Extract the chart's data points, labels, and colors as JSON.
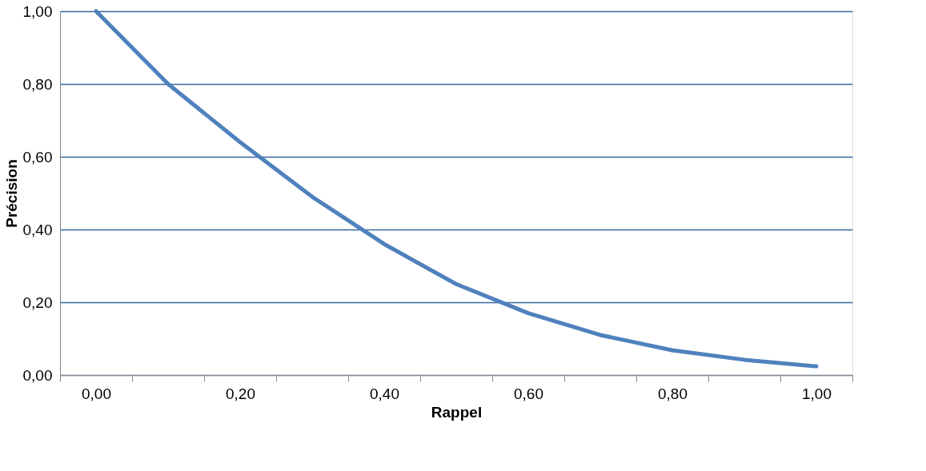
{
  "chart_data": {
    "type": "line",
    "xlabel": "Rappel",
    "ylabel": "Précision",
    "categories": [
      "0,00",
      null,
      "0,20",
      null,
      "0,40",
      null,
      "0,60",
      null,
      "0,80",
      null,
      "1,00"
    ],
    "series": [
      {
        "color": "#4f81bd",
        "values": [
          1.0,
          0.8,
          0.64,
          0.49,
          0.36,
          0.25,
          0.17,
          0.11,
          0.068,
          0.042,
          0.024
        ]
      }
    ],
    "ylim": [
      0,
      1
    ],
    "yticks": [
      {
        "value": 0,
        "label": "0,00"
      },
      {
        "value": 0.2,
        "label": "0,20"
      },
      {
        "value": 0.4,
        "label": "0,40"
      },
      {
        "value": 0.6,
        "label": "0,60"
      },
      {
        "value": 0.8,
        "label": "0,80"
      },
      {
        "value": 1,
        "label": "1,00"
      }
    ],
    "grid": "y",
    "legend": false,
    "marker": "none",
    "line_style": "solid"
  }
}
